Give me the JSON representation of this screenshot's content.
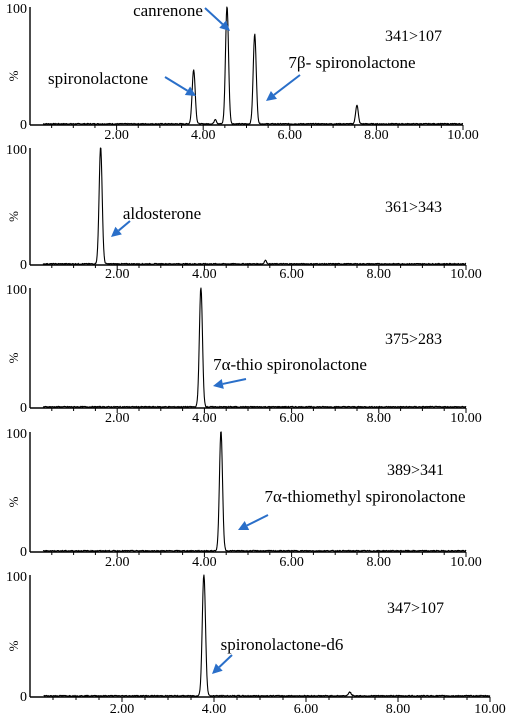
{
  "chart_data": [
    {
      "type": "line",
      "transition": "341>107",
      "ylabel": "%",
      "xlim": [
        0,
        10
      ],
      "ylim": [
        0,
        100
      ],
      "x_tick_labels": [
        "2.00",
        "4.00",
        "6.00",
        "8.00",
        "10.00"
      ],
      "y_tick_labels": [
        "0",
        "100"
      ],
      "peaks": [
        {
          "rt": 3.78,
          "height": 46,
          "width": 0.07
        },
        {
          "rt": 4.28,
          "height": 4,
          "width": 0.05
        },
        {
          "rt": 4.55,
          "height": 100,
          "width": 0.07
        },
        {
          "rt": 5.19,
          "height": 76,
          "width": 0.07
        },
        {
          "rt": 7.55,
          "height": 16,
          "width": 0.06
        }
      ],
      "annotations": [
        {
          "label": "canrenone",
          "rt": 4.55
        },
        {
          "label": "spironolactone",
          "rt": 3.78
        },
        {
          "label": "7β- spironolactone",
          "rt": 5.19
        }
      ]
    },
    {
      "type": "line",
      "transition": "361>343",
      "ylabel": "%",
      "xlim": [
        0,
        10
      ],
      "ylim": [
        0,
        100
      ],
      "x_tick_labels": [
        "2.00",
        "4.00",
        "6.00",
        "8.00",
        "10.00"
      ],
      "y_tick_labels": [
        "0",
        "100"
      ],
      "peaks": [
        {
          "rt": 1.62,
          "height": 100,
          "width": 0.07
        },
        {
          "rt": 5.4,
          "height": 3,
          "width": 0.05
        }
      ],
      "annotations": [
        {
          "label": "aldosterone",
          "rt": 1.62
        }
      ]
    },
    {
      "type": "line",
      "transition": "375>283",
      "ylabel": "%",
      "xlim": [
        0,
        10
      ],
      "ylim": [
        0,
        100
      ],
      "x_tick_labels": [
        "2.00",
        "4.00",
        "6.00",
        "8.00",
        "10.00"
      ],
      "y_tick_labels": [
        "0",
        "100"
      ],
      "peaks": [
        {
          "rt": 3.92,
          "height": 100,
          "width": 0.07
        }
      ],
      "annotations": [
        {
          "label": "7α-thio spironolactone",
          "rt": 3.92
        }
      ]
    },
    {
      "type": "line",
      "transition": "389>341",
      "ylabel": "%",
      "xlim": [
        0,
        10
      ],
      "ylim": [
        0,
        100
      ],
      "x_tick_labels": [
        "2.00",
        "4.00",
        "6.00",
        "8.00",
        "10.00"
      ],
      "y_tick_labels": [
        "0",
        "100"
      ],
      "peaks": [
        {
          "rt": 4.38,
          "height": 100,
          "width": 0.07
        }
      ],
      "annotations": [
        {
          "label": "7α-thiomethyl spironolactone",
          "rt": 4.38
        }
      ]
    },
    {
      "type": "line",
      "transition": "347>107",
      "ylabel": "%",
      "xlim": [
        0,
        10
      ],
      "ylim": [
        0,
        100
      ],
      "x_tick_labels": [
        "2.00",
        "4.00",
        "6.00",
        "8.00",
        "10.00"
      ],
      "y_tick_labels": [
        "0",
        "100"
      ],
      "peaks": [
        {
          "rt": 3.78,
          "height": 100,
          "width": 0.07
        },
        {
          "rt": 6.95,
          "height": 3,
          "width": 0.06
        }
      ],
      "annotations": [
        {
          "label": "spironolactone-d6",
          "rt": 3.78
        }
      ]
    }
  ],
  "colors": {
    "trace": "#000000",
    "arrow": "#2a6fc9"
  }
}
